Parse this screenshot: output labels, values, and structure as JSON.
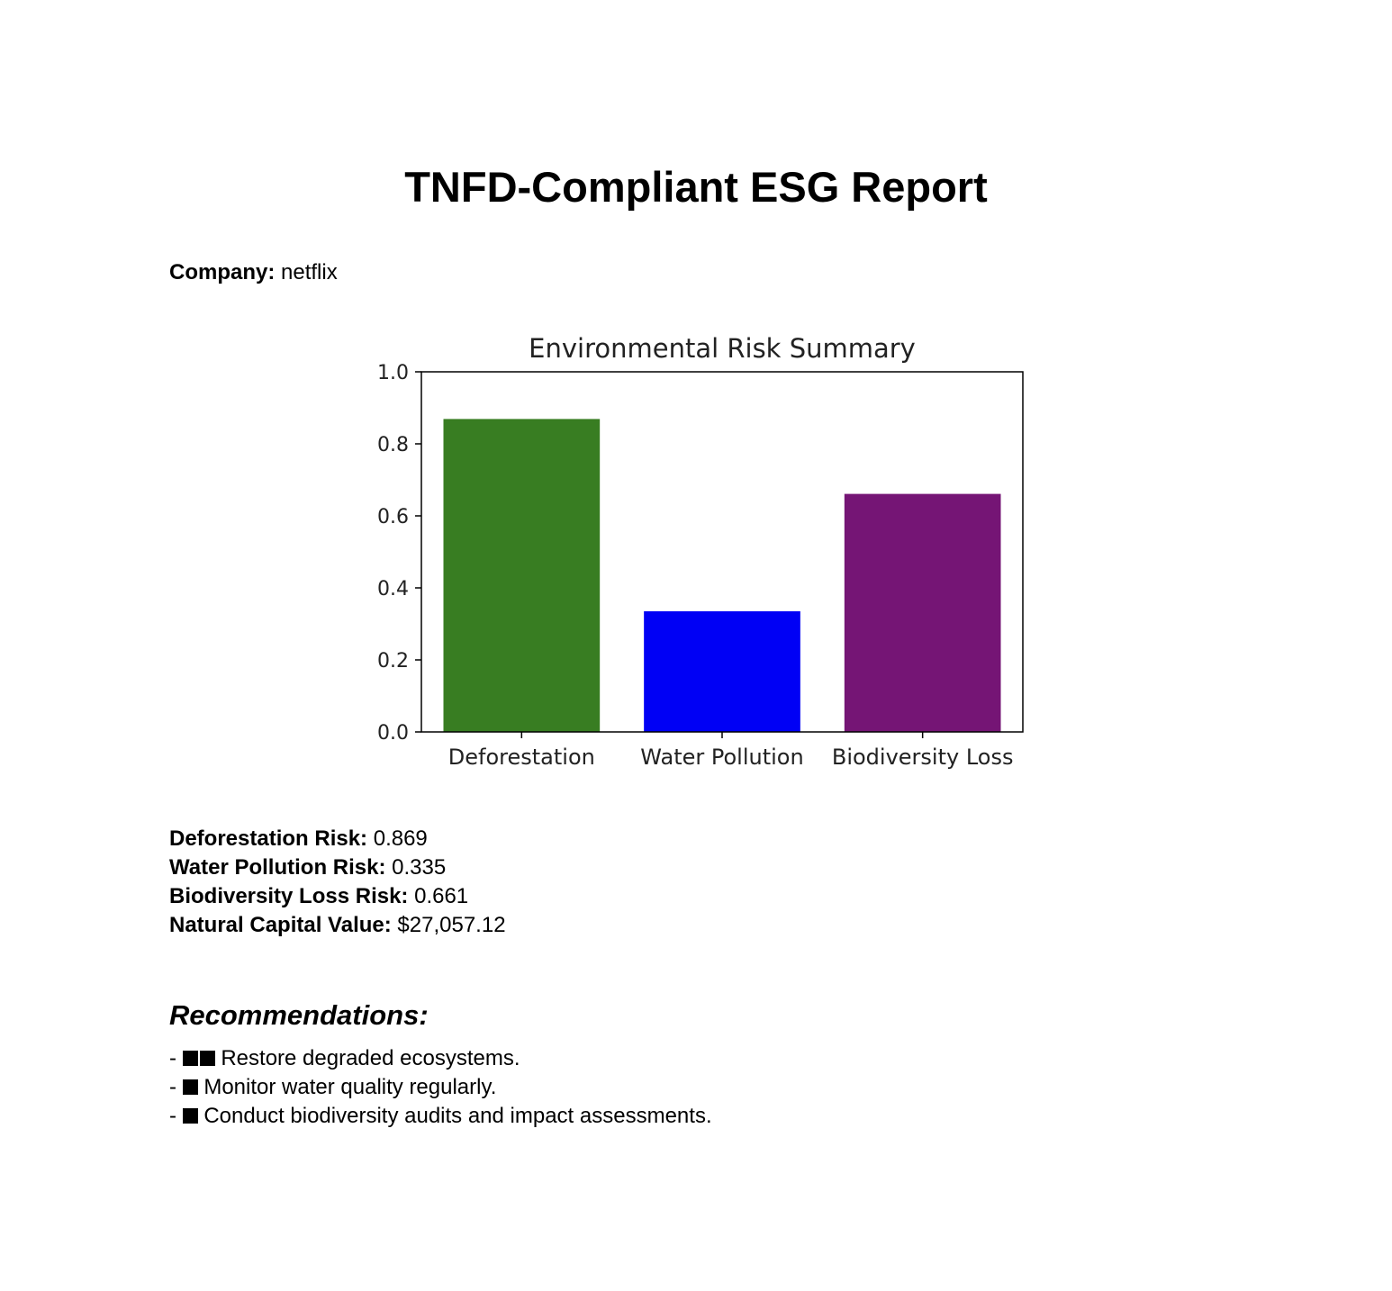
{
  "report": {
    "title": "TNFD-Compliant ESG Report",
    "company_label": "Company:",
    "company_name": "netflix"
  },
  "metrics": [
    {
      "label": "Deforestation Risk:",
      "value": "0.869"
    },
    {
      "label": "Water Pollution Risk:",
      "value": "0.335"
    },
    {
      "label": "Biodiversity Loss Risk:",
      "value": "0.661"
    },
    {
      "label": "Natural Capital Value:",
      "value": "$27,057.12"
    }
  ],
  "recommendations": {
    "heading": "Recommendations:",
    "items": [
      {
        "prefix": "-",
        "icon": "black-square-icon",
        "icon_count": 2,
        "text": "Restore degraded ecosystems."
      },
      {
        "prefix": "-",
        "icon": "black-square-icon",
        "icon_count": 1,
        "text": "Monitor water quality regularly."
      },
      {
        "prefix": "-",
        "icon": "black-square-icon",
        "icon_count": 1,
        "text": "Conduct biodiversity audits and impact assessments."
      }
    ]
  },
  "chart_data": {
    "type": "bar",
    "title": "Environmental Risk Summary",
    "categories": [
      "Deforestation",
      "Water Pollution",
      "Biodiversity Loss"
    ],
    "values": [
      0.869,
      0.335,
      0.661
    ],
    "colors": [
      "#387d22",
      "#0000f5",
      "#751575"
    ],
    "ylim": [
      0,
      1.0
    ],
    "yticks": [
      "0.0",
      "0.2",
      "0.4",
      "0.6",
      "0.8",
      "1.0"
    ],
    "grid": false,
    "xlabel": "",
    "ylabel": ""
  }
}
